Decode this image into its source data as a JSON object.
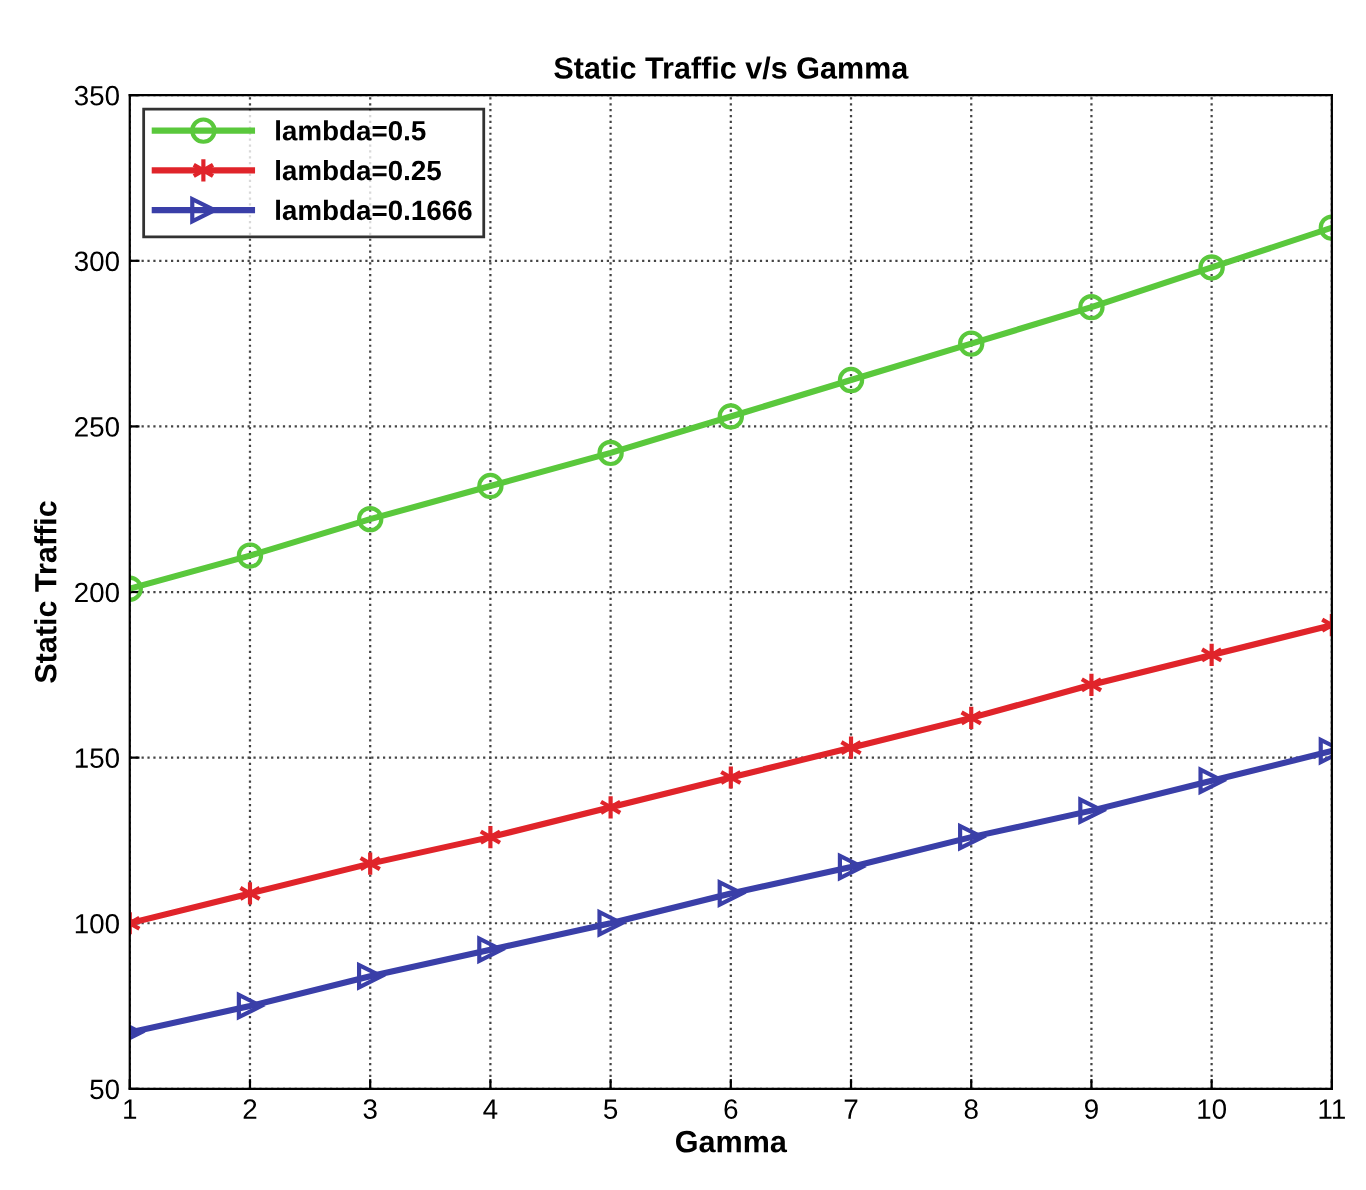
{
  "chart_data": {
    "type": "line",
    "title": "Static Traffic v/s Gamma",
    "xlabel": "Gamma",
    "ylabel": "Static Traffic",
    "x": [
      1,
      2,
      3,
      4,
      5,
      6,
      7,
      8,
      9,
      10,
      11
    ],
    "series": [
      {
        "name": "lambda=0.5",
        "color": "#5ac83c",
        "marker": "circle",
        "values": [
          201,
          211,
          222,
          232,
          242,
          253,
          264,
          275,
          286,
          298,
          310
        ]
      },
      {
        "name": "lambda=0.25",
        "color": "#e0242a",
        "marker": "cross",
        "values": [
          100,
          109,
          118,
          126,
          135,
          144,
          153,
          162,
          172,
          181,
          190
        ]
      },
      {
        "name": "lambda=0.1666",
        "color": "#3a3fa8",
        "marker": "triangle",
        "values": [
          67,
          75,
          84,
          92,
          100,
          109,
          117,
          126,
          134,
          143,
          152
        ]
      }
    ],
    "xlim": [
      1,
      11
    ],
    "xticks": [
      1,
      2,
      3,
      4,
      5,
      6,
      7,
      8,
      9,
      10,
      11
    ],
    "ylim": [
      50,
      350
    ],
    "yticks": [
      50,
      100,
      150,
      200,
      250,
      300,
      350
    ],
    "grid": true,
    "legend": "top left",
    "line_style": "solid"
  }
}
